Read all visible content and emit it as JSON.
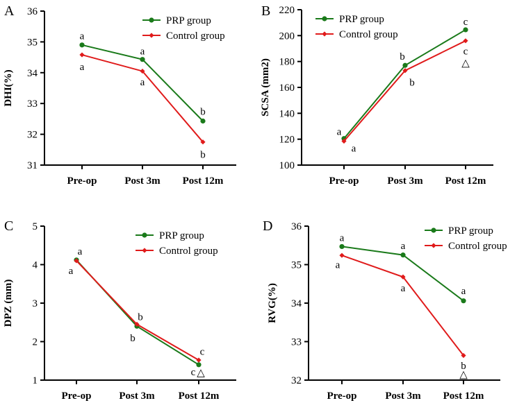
{
  "colors": {
    "prp": "#1a7a1a",
    "control": "#e01b1b",
    "axis": "#000000"
  },
  "chart_data": [
    {
      "type": "line",
      "panel": "A",
      "ylabel": "DHI(%)",
      "categories": [
        "Pre-op",
        "Post 3m",
        "Post 12m"
      ],
      "ylim": [
        31,
        36
      ],
      "yticks": [
        31,
        32,
        33,
        34,
        35,
        36
      ],
      "legend_position": "top-right",
      "series": [
        {
          "name": "PRP group",
          "key": "prp",
          "values": [
            34.9,
            34.43,
            32.43
          ]
        },
        {
          "name": "Control group",
          "key": "control",
          "values": [
            34.58,
            34.05,
            31.75
          ]
        }
      ],
      "annotations": [
        {
          "cat": 0,
          "value": 35.2,
          "text": "a"
        },
        {
          "cat": 0,
          "value": 34.2,
          "text": "a"
        },
        {
          "cat": 1,
          "value": 34.7,
          "text": "a"
        },
        {
          "cat": 1,
          "value": 33.7,
          "text": "a"
        },
        {
          "cat": 2,
          "value": 32.75,
          "text": "b"
        },
        {
          "cat": 2,
          "value": 31.35,
          "text": "b"
        }
      ]
    },
    {
      "type": "line",
      "panel": "B",
      "ylabel": "SCSA (mm2)",
      "categories": [
        "Pre-op",
        "Post 3m",
        "Post 12m"
      ],
      "ylim": [
        100,
        220
      ],
      "yticks": [
        100,
        120,
        140,
        160,
        180,
        200,
        220
      ],
      "legend_position": "top-left",
      "series": [
        {
          "name": "PRP group",
          "key": "prp",
          "values": [
            120.5,
            177,
            204.5
          ]
        },
        {
          "name": "Control group",
          "key": "control",
          "values": [
            118.5,
            173,
            196
          ]
        }
      ],
      "annotations": [
        {
          "cat": 0,
          "value": 126,
          "text": "a",
          "dx": -7
        },
        {
          "cat": 0,
          "value": 113,
          "text": "a",
          "dx": 14
        },
        {
          "cat": 1,
          "value": 184,
          "text": "b",
          "dx": -4
        },
        {
          "cat": 1,
          "value": 164,
          "text": "b",
          "dx": 10
        },
        {
          "cat": 2,
          "value": 211,
          "text": "c"
        },
        {
          "cat": 2,
          "value": 188,
          "text": "c"
        },
        {
          "cat": 2,
          "value": 179,
          "text": "△"
        }
      ]
    },
    {
      "type": "line",
      "panel": "C",
      "ylabel": "DPZ (mm)",
      "categories": [
        "Pre-op",
        "Post 3m",
        "Post 12m"
      ],
      "ylim": [
        1,
        5
      ],
      "yticks": [
        1,
        2,
        3,
        4,
        5
      ],
      "legend_position": "top-right",
      "series": [
        {
          "name": "PRP group",
          "key": "prp",
          "values": [
            4.12,
            2.4,
            1.4
          ]
        },
        {
          "name": "Control group",
          "key": "control",
          "values": [
            4.1,
            2.45,
            1.52
          ]
        }
      ],
      "annotations": [
        {
          "cat": 0,
          "value": 4.35,
          "text": "a",
          "dx": 5
        },
        {
          "cat": 0,
          "value": 3.85,
          "text": "a",
          "dx": -8
        },
        {
          "cat": 1,
          "value": 2.65,
          "text": "b",
          "dx": 5
        },
        {
          "cat": 1,
          "value": 2.1,
          "text": "b",
          "dx": -6
        },
        {
          "cat": 2,
          "value": 1.75,
          "text": "c",
          "dx": 5
        },
        {
          "cat": 2,
          "value": 1.22,
          "text": "c",
          "dx": -8
        },
        {
          "cat": 2,
          "value": 1.2,
          "text": "△",
          "dx": 3
        }
      ]
    },
    {
      "type": "line",
      "panel": "D",
      "ylabel": "RVG(%)",
      "categories": [
        "Pre-op",
        "Post 3m",
        "Post 12m"
      ],
      "ylim": [
        32,
        36
      ],
      "yticks": [
        32,
        33,
        34,
        35,
        36
      ],
      "legend_position": "top-right",
      "series": [
        {
          "name": "PRP group",
          "key": "prp",
          "values": [
            35.47,
            35.25,
            34.06
          ]
        },
        {
          "name": "Control group",
          "key": "control",
          "values": [
            35.24,
            34.68,
            32.64
          ]
        }
      ],
      "annotations": [
        {
          "cat": 0,
          "value": 35.7,
          "text": "a"
        },
        {
          "cat": 0,
          "value": 35.0,
          "text": "a",
          "dx": -6
        },
        {
          "cat": 1,
          "value": 35.5,
          "text": "a"
        },
        {
          "cat": 1,
          "value": 34.4,
          "text": "a"
        },
        {
          "cat": 2,
          "value": 34.32,
          "text": "a"
        },
        {
          "cat": 2,
          "value": 32.38,
          "text": "b"
        },
        {
          "cat": 2,
          "value": 32.15,
          "text": "△"
        }
      ]
    }
  ]
}
